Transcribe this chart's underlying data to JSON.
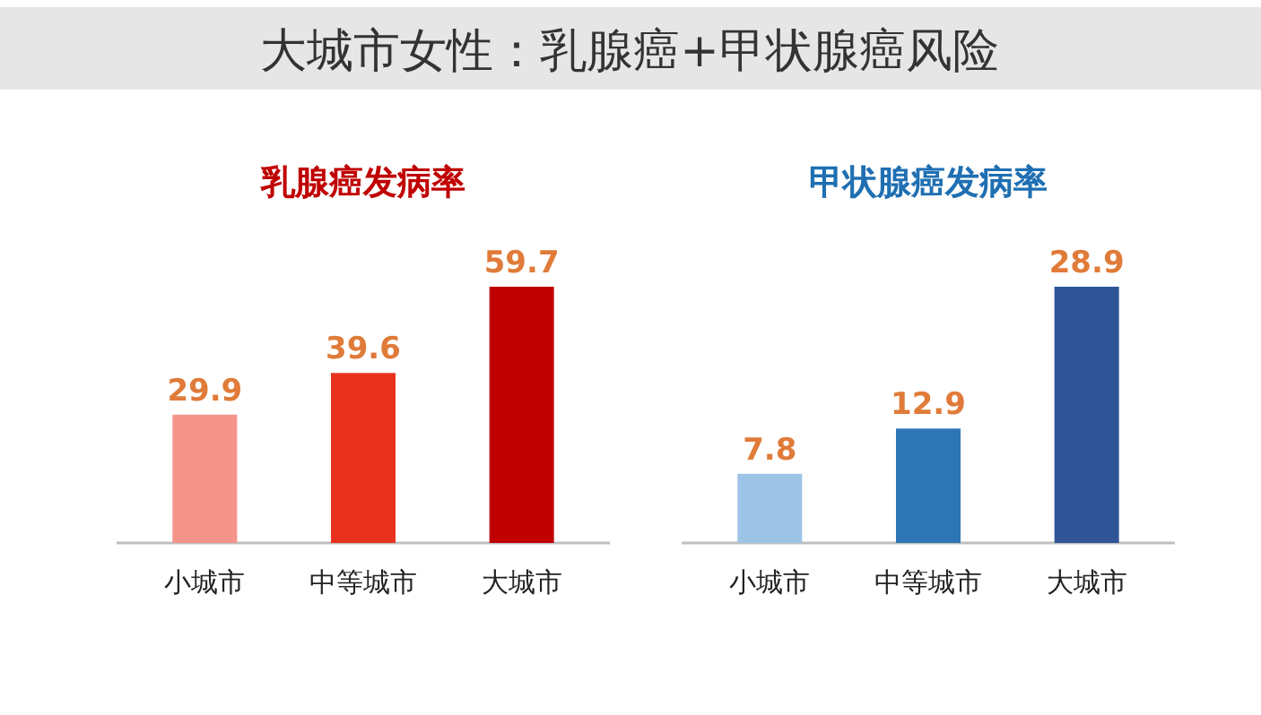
{
  "chart_data": [
    {
      "type": "bar",
      "title": "乳腺癌发病率",
      "annotations": [
        "大城市女性：乳腺癌+甲状腺癌风险"
      ],
      "categories": [
        "小城市",
        "中等城市",
        "大城市"
      ],
      "values": [
        29.9,
        39.6,
        59.7
      ],
      "colors": [
        "#f4938a",
        "#e8321e",
        "#c00000"
      ],
      "data_labels": true
    },
    {
      "type": "bar",
      "title": "甲状腺癌发病率",
      "categories": [
        "小城市",
        "中等城市",
        "大城市"
      ],
      "values": [
        7.8,
        12.9,
        28.9
      ],
      "colors": [
        "#9dc3e6",
        "#2e75b6",
        "#2f5597"
      ],
      "data_labels": true
    }
  ]
}
